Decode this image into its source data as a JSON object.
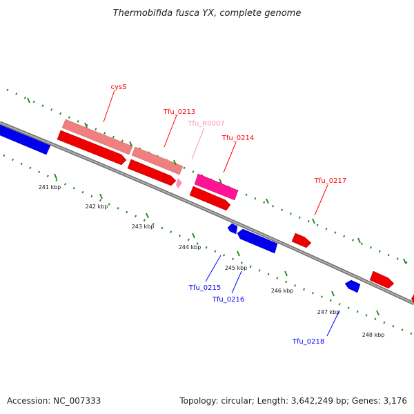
{
  "title": "Thermobifida fusca YX, complete genome",
  "footer": {
    "accession": "Accession: NC_007333",
    "summary": "Topology: circular; Length: 3,642,249 bp; Genes: 3,176"
  },
  "colors": {
    "backbone": "#8c8c8c",
    "forward_strand": "#ff0000",
    "reverse_strand": "#0000ff",
    "rrna_like": "#ff8080",
    "trna": "#ff90b0",
    "misc": "#ff1493",
    "tick": "#2a8a2a"
  },
  "scale": {
    "ticks": [
      {
        "label": "241 kbp"
      },
      {
        "label": "242 kbp"
      },
      {
        "label": "243 kbp"
      },
      {
        "label": "244 kbp"
      },
      {
        "label": "245 kbp"
      },
      {
        "label": "246 kbp"
      },
      {
        "label": "247 kbp"
      },
      {
        "label": "248 kbp"
      }
    ]
  },
  "gene_labels": [
    {
      "text": "cysS",
      "color": "#ff0000"
    },
    {
      "text": "Tfu_0213",
      "color": "#ff0000"
    },
    {
      "text": "Tfu_R0007",
      "color": "#ff90b0"
    },
    {
      "text": "Tfu_0214",
      "color": "#ff0000"
    },
    {
      "text": "Tfu_0217",
      "color": "#ff0000"
    },
    {
      "text": "Tfu_0215",
      "color": "#0000ff"
    },
    {
      "text": "Tfu_0216",
      "color": "#0000ff"
    },
    {
      "text": "Tfu_0218",
      "color": "#0000ff"
    }
  ]
}
